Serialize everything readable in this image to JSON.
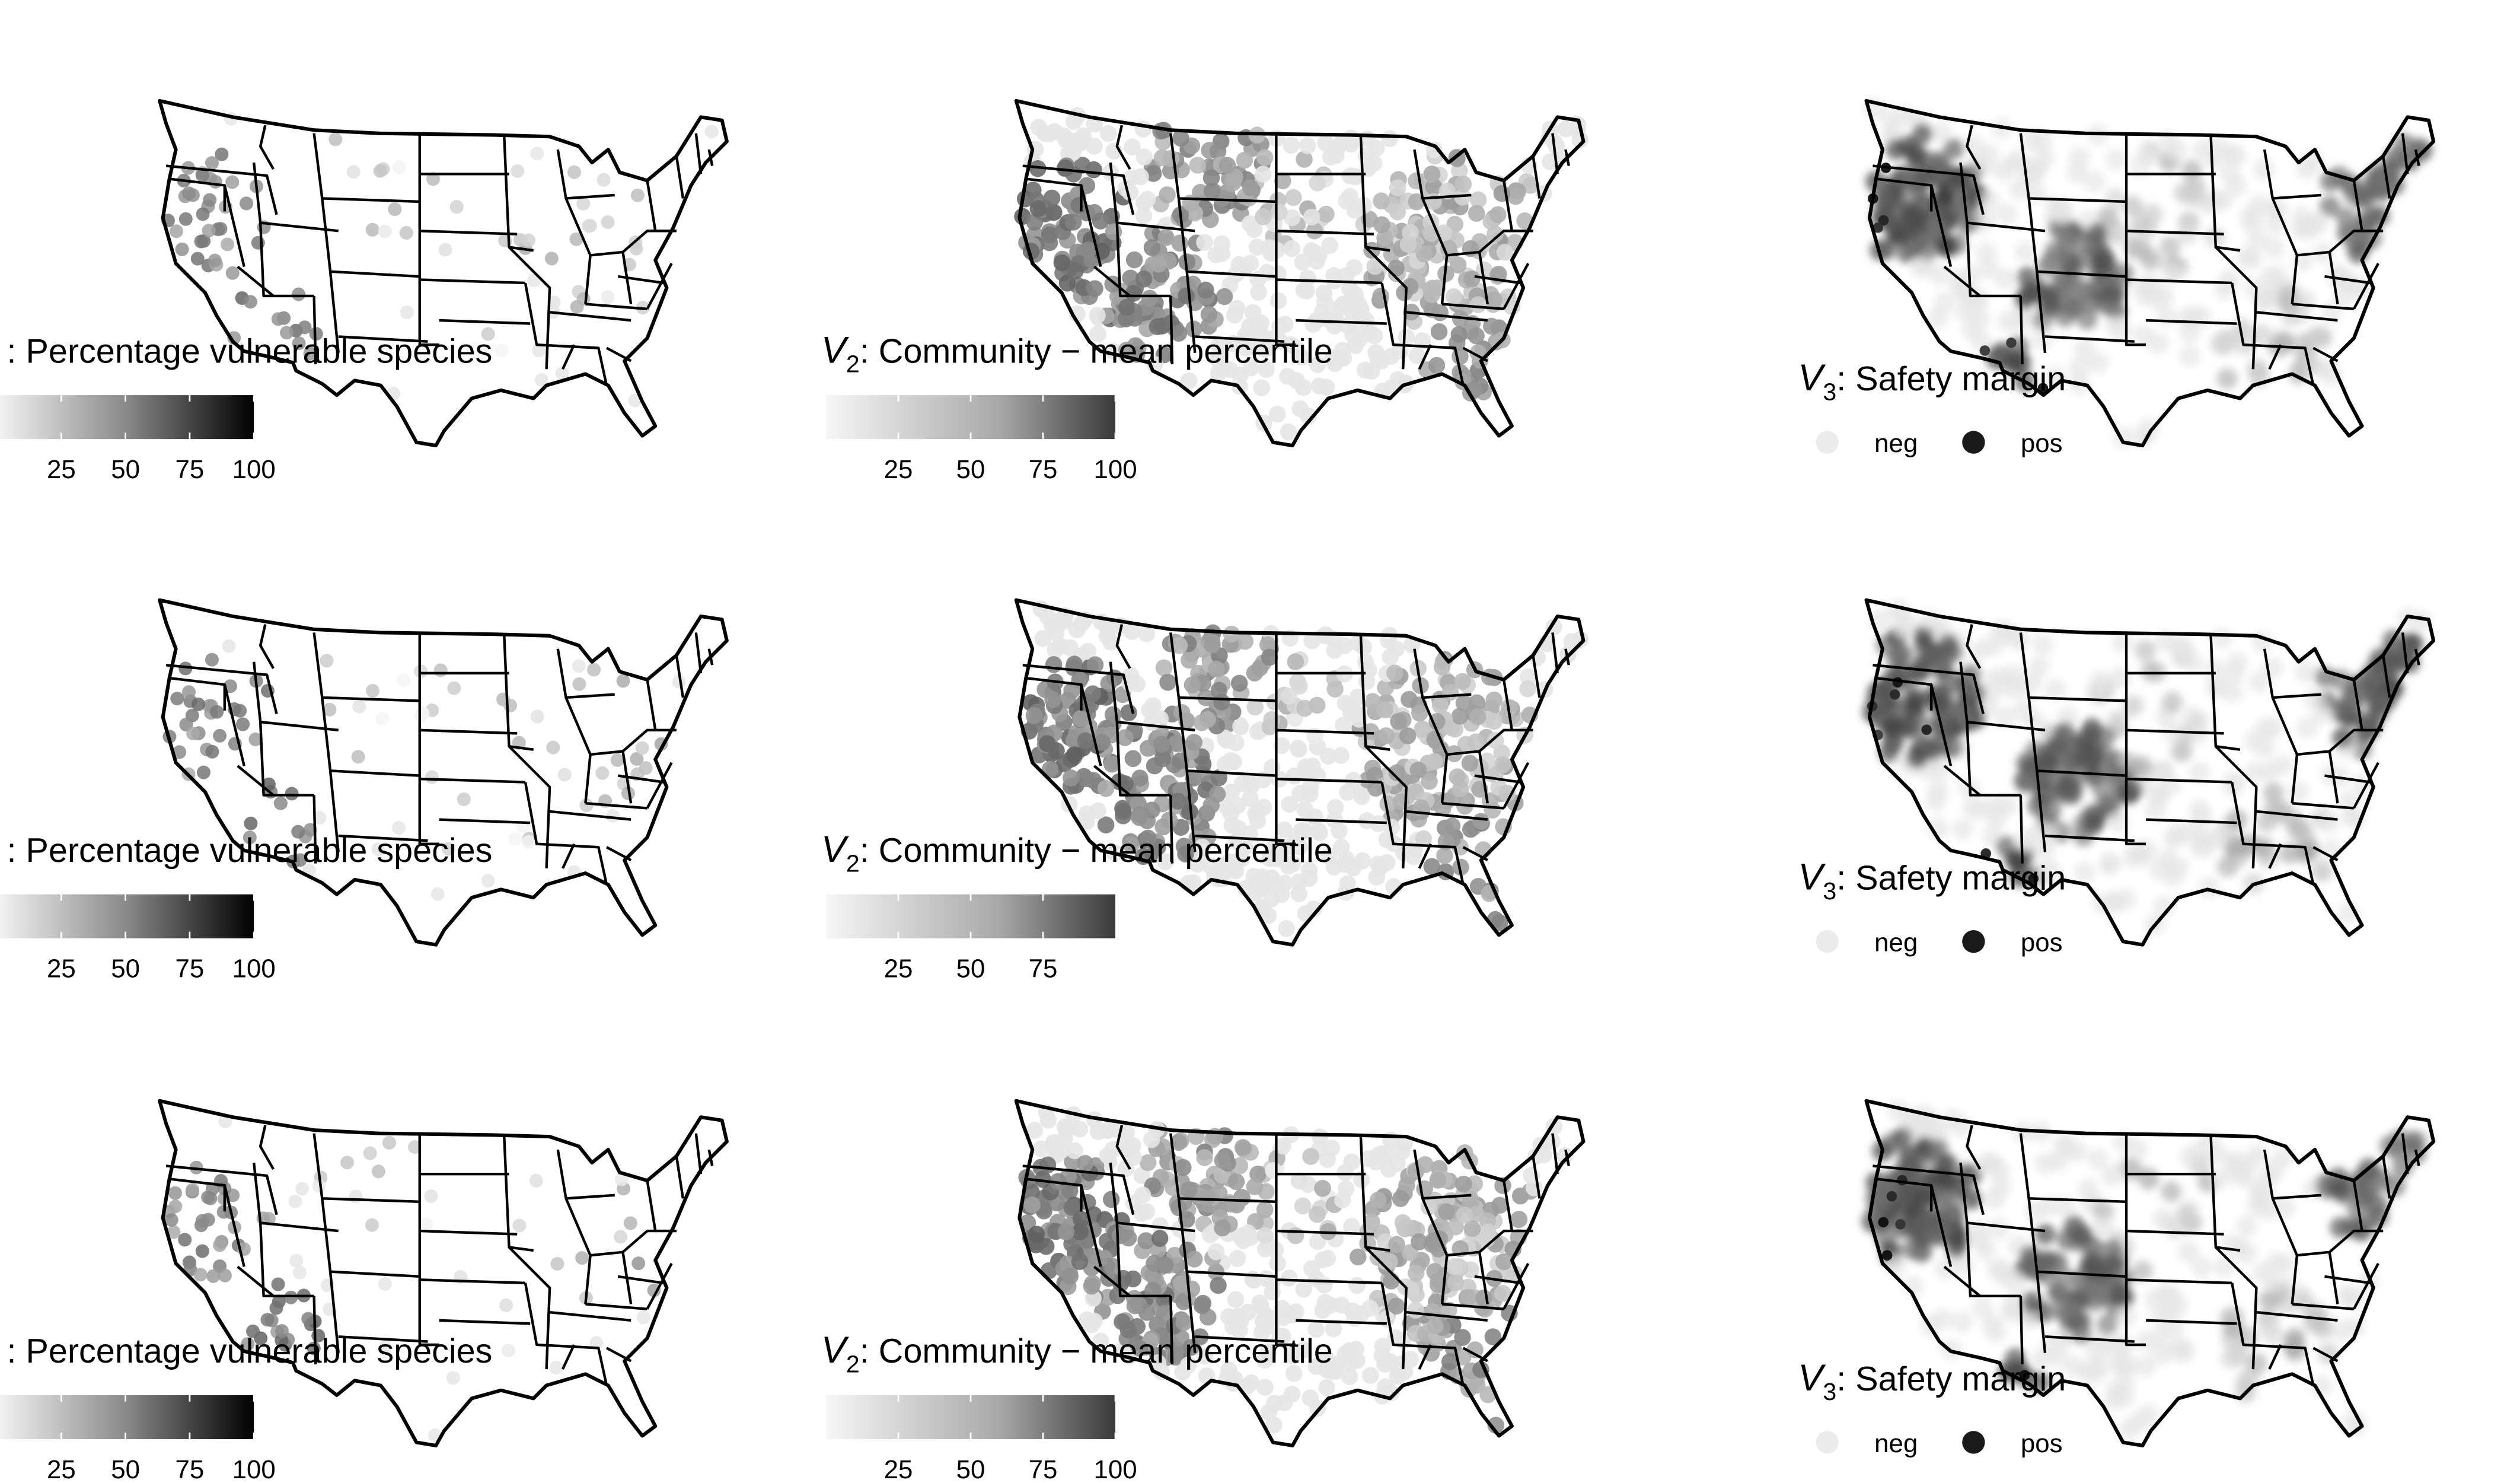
{
  "chart_data": {
    "type": "map",
    "panels": [
      {
        "kind": "continuous",
        "title_sub": "",
        "title_text": ": Percentage vulnerable species",
        "ticks": [
          "25",
          "50",
          "75",
          "100"
        ]
      },
      {
        "kind": "continuous",
        "title_sub": "2",
        "title_text": ": Community − mean percentile",
        "ticks": [
          "25",
          "50",
          "75",
          "100"
        ]
      },
      {
        "kind": "categorical",
        "title_sub": "3",
        "title_text": ": Safety margin",
        "legend": [
          "neg",
          "pos"
        ]
      },
      {
        "kind": "continuous",
        "title_sub": "",
        "title_text": ": Percentage vulnerable species",
        "ticks": [
          "25",
          "50",
          "75",
          "100"
        ]
      },
      {
        "kind": "continuous",
        "title_sub": "2",
        "title_text": ": Community − mean percentile",
        "ticks": [
          "25",
          "50",
          "75"
        ]
      },
      {
        "kind": "categorical",
        "title_sub": "3",
        "title_text": ": Safety margin",
        "legend": [
          "neg",
          "pos"
        ]
      },
      {
        "kind": "continuous",
        "title_sub": "",
        "title_text": ": Percentage vulnerable species",
        "ticks": [
          "25",
          "50",
          "75",
          "100"
        ]
      },
      {
        "kind": "continuous",
        "title_sub": "2",
        "title_text": ": Community − mean percentile",
        "ticks": [
          "25",
          "50",
          "75",
          "100"
        ]
      },
      {
        "kind": "categorical",
        "title_sub": "3",
        "title_text": ": Safety margin",
        "legend": [
          "neg",
          "pos"
        ]
      }
    ]
  }
}
